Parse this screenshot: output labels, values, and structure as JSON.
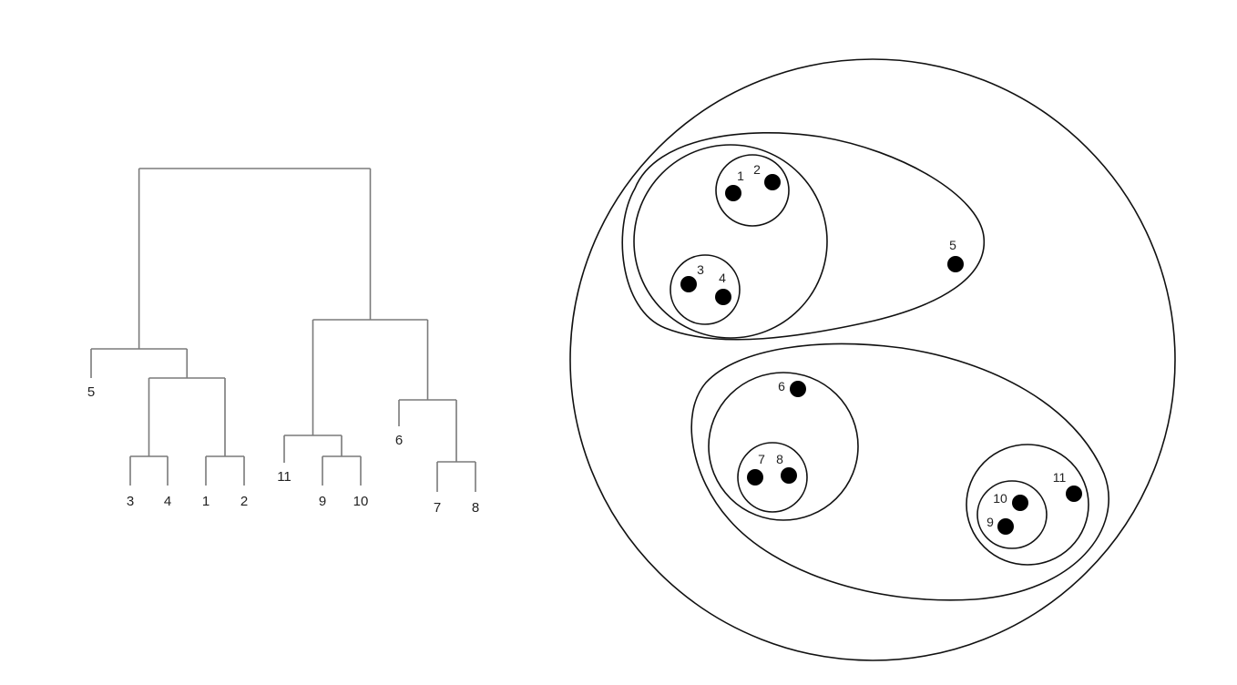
{
  "dendrogram": {
    "leaves": [
      {
        "id": "5",
        "label": "5"
      },
      {
        "id": "3",
        "label": "3"
      },
      {
        "id": "4",
        "label": "4"
      },
      {
        "id": "1",
        "label": "1"
      },
      {
        "id": "2",
        "label": "2"
      },
      {
        "id": "11",
        "label": "11"
      },
      {
        "id": "9",
        "label": "9"
      },
      {
        "id": "10",
        "label": "10"
      },
      {
        "id": "6",
        "label": "6"
      },
      {
        "id": "7",
        "label": "7"
      },
      {
        "id": "8",
        "label": "8"
      }
    ],
    "merges": [
      {
        "id": "m34",
        "children": [
          "3",
          "4"
        ]
      },
      {
        "id": "m12",
        "children": [
          "1",
          "2"
        ]
      },
      {
        "id": "m1234",
        "children": [
          "m34",
          "m12"
        ]
      },
      {
        "id": "m51234",
        "children": [
          "5",
          "m1234"
        ]
      },
      {
        "id": "m910",
        "children": [
          "9",
          "10"
        ]
      },
      {
        "id": "m11910",
        "children": [
          "11",
          "m910"
        ]
      },
      {
        "id": "m78",
        "children": [
          "7",
          "8"
        ]
      },
      {
        "id": "m678",
        "children": [
          "6",
          "m78"
        ]
      },
      {
        "id": "mright",
        "children": [
          "m11910",
          "m678"
        ]
      },
      {
        "id": "mroot",
        "children": [
          "m51234",
          "mright"
        ]
      }
    ]
  },
  "points": [
    {
      "id": "1",
      "label": "1"
    },
    {
      "id": "2",
      "label": "2"
    },
    {
      "id": "3",
      "label": "3"
    },
    {
      "id": "4",
      "label": "4"
    },
    {
      "id": "5",
      "label": "5"
    },
    {
      "id": "6",
      "label": "6"
    },
    {
      "id": "7",
      "label": "7"
    },
    {
      "id": "8",
      "label": "8"
    },
    {
      "id": "9",
      "label": "9"
    },
    {
      "id": "10",
      "label": "10"
    },
    {
      "id": "11",
      "label": "11"
    }
  ],
  "clusters": [
    {
      "id": "all",
      "members": [
        "1",
        "2",
        "3",
        "4",
        "5",
        "6",
        "7",
        "8",
        "9",
        "10",
        "11"
      ]
    },
    {
      "id": "c12345",
      "members": [
        "1",
        "2",
        "3",
        "4",
        "5"
      ]
    },
    {
      "id": "c1234",
      "members": [
        "1",
        "2",
        "3",
        "4"
      ]
    },
    {
      "id": "c12",
      "members": [
        "1",
        "2"
      ]
    },
    {
      "id": "c34",
      "members": [
        "3",
        "4"
      ]
    },
    {
      "id": "c67891011",
      "members": [
        "6",
        "7",
        "8",
        "9",
        "10",
        "11"
      ]
    },
    {
      "id": "c678",
      "members": [
        "6",
        "7",
        "8"
      ]
    },
    {
      "id": "c78",
      "members": [
        "7",
        "8"
      ]
    },
    {
      "id": "c91011",
      "members": [
        "9",
        "10",
        "11"
      ]
    },
    {
      "id": "c910",
      "members": [
        "9",
        "10"
      ]
    }
  ]
}
